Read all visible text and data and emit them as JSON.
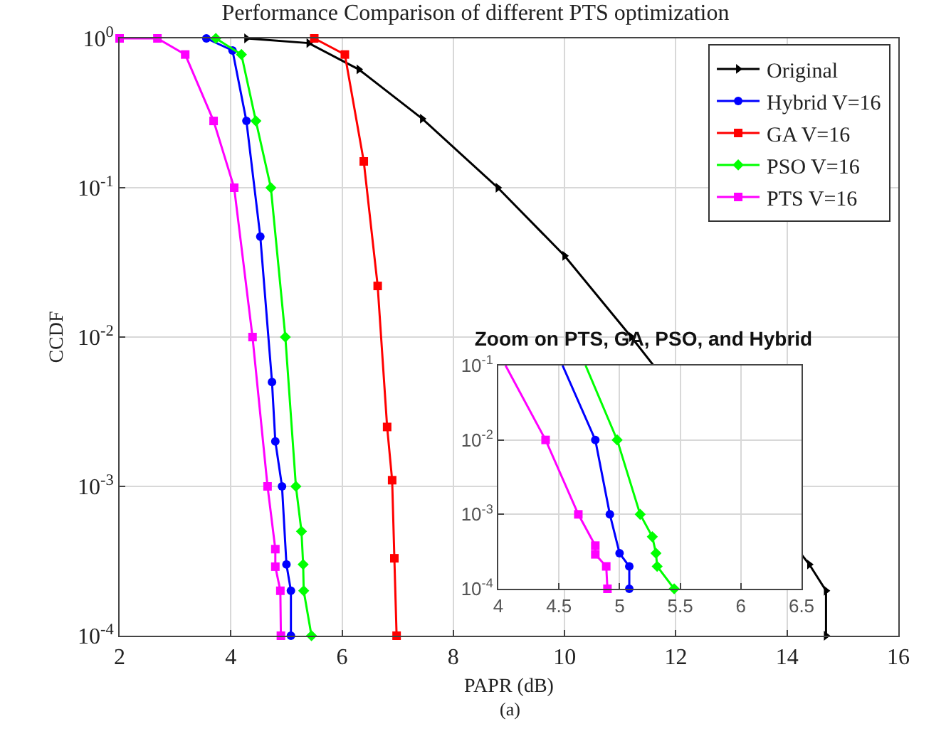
{
  "chart_data": [
    {
      "type": "line",
      "title": "Performance Comparison of different PTS optimization",
      "xlabel": "PAPR (dB)",
      "ylabel": "CCDF",
      "annotations": [
        "(a)"
      ],
      "log": "y",
      "grid": true,
      "legend": "top right",
      "xlim": [
        2,
        16
      ],
      "xticks": [
        2,
        4,
        6,
        8,
        10,
        12,
        14,
        16
      ],
      "ylim": [
        0.0001,
        1
      ],
      "yticks": [
        {
          "value": 1,
          "label": "10$^{0}$"
        },
        {
          "value": 0.1,
          "label": "10$^{-1}$"
        },
        {
          "value": 0.01,
          "label": "10$^{-2}$"
        },
        {
          "value": 0.001,
          "label": "10$^{-3}$"
        },
        {
          "value": 0.0001,
          "label": "10$^{-4}$"
        }
      ],
      "series": [
        {
          "name": "Original",
          "color": "#000000",
          "marker": "triangle",
          "x": [
            4.28,
            5.4,
            6.3,
            7.44,
            8.8,
            10.0,
            11.2,
            14.4,
            14.7,
            14.7
          ],
          "values": [
            1,
            0.93,
            0.62,
            0.29,
            0.1,
            0.035,
            0.01,
            0.0003,
            0.0002,
            0.0001
          ]
        },
        {
          "name": "Hybrid V=16",
          "color": "#0000ff",
          "marker": "circle",
          "x": [
            3.56,
            4.03,
            4.28,
            4.53,
            4.74,
            4.8,
            4.92,
            5.0,
            5.08,
            5.08
          ],
          "values": [
            1,
            0.83,
            0.28,
            0.047,
            0.005,
            0.002,
            0.001,
            0.0003,
            0.0002,
            0.0001
          ]
        },
        {
          "name": "GA V=16",
          "color": "#ff0000",
          "marker": "square",
          "x": [
            5.5,
            6.05,
            6.39,
            6.64,
            6.81,
            6.9,
            6.94,
            6.98
          ],
          "values": [
            1,
            0.78,
            0.15,
            0.022,
            0.0025,
            0.0011,
            0.00033,
            0.0001
          ]
        },
        {
          "name": "PSO V=16",
          "color": "#00ff00",
          "marker": "diamond",
          "x": [
            3.73,
            4.19,
            4.45,
            4.72,
            4.98,
            5.17,
            5.27,
            5.3,
            5.31,
            5.45
          ],
          "values": [
            1,
            0.78,
            0.28,
            0.1,
            0.01,
            0.001,
            0.0005,
            0.0003,
            0.0002,
            0.0001
          ]
        },
        {
          "name": "PTS V=16",
          "color": "#ff00ff",
          "marker": "square",
          "x": [
            2.0,
            2.68,
            3.18,
            3.69,
            4.06,
            4.39,
            4.66,
            4.8,
            4.8,
            4.89,
            4.9
          ],
          "values": [
            1,
            1,
            0.78,
            0.28,
            0.1,
            0.01,
            0.001,
            0.00038,
            0.00029,
            0.0002,
            0.0001
          ]
        }
      ]
    },
    {
      "type": "line",
      "title": "Zoom on PTS, GA, PSO, and Hybrid",
      "log": "y",
      "grid": true,
      "xlim": [
        4,
        6.5
      ],
      "xticks": [
        4,
        4.5,
        5,
        5.5,
        6,
        6.5
      ],
      "ylim": [
        0.0001,
        0.1
      ],
      "yticks": [
        {
          "value": 0.1,
          "label": "10$^{-1}$"
        },
        {
          "value": 0.01,
          "label": "10$^{-2}$"
        },
        {
          "value": 0.001,
          "label": "10$^{-3}$"
        },
        {
          "value": 0.0001,
          "label": "10$^{-4}$"
        }
      ],
      "series": [
        {
          "color": "#ff00ff",
          "marker": "square",
          "x": [
            4.06,
            4.39,
            4.66,
            4.8,
            4.8,
            4.89,
            4.9
          ],
          "values": [
            0.1,
            0.01,
            0.001,
            0.00038,
            0.00029,
            0.0002,
            0.0001
          ]
        },
        {
          "color": "#0000ff",
          "marker": "circle",
          "x": [
            4.53,
            4.8,
            4.92,
            5.0,
            5.08,
            5.08
          ],
          "values": [
            0.1,
            0.01,
            0.001,
            0.0003,
            0.0002,
            0.0001
          ]
        },
        {
          "color": "#00ff00",
          "marker": "diamond",
          "x": [
            4.72,
            4.98,
            5.17,
            5.27,
            5.3,
            5.31,
            5.45
          ],
          "values": [
            0.1,
            0.01,
            0.001,
            0.0005,
            0.0003,
            0.0002,
            0.0001
          ]
        }
      ]
    }
  ]
}
